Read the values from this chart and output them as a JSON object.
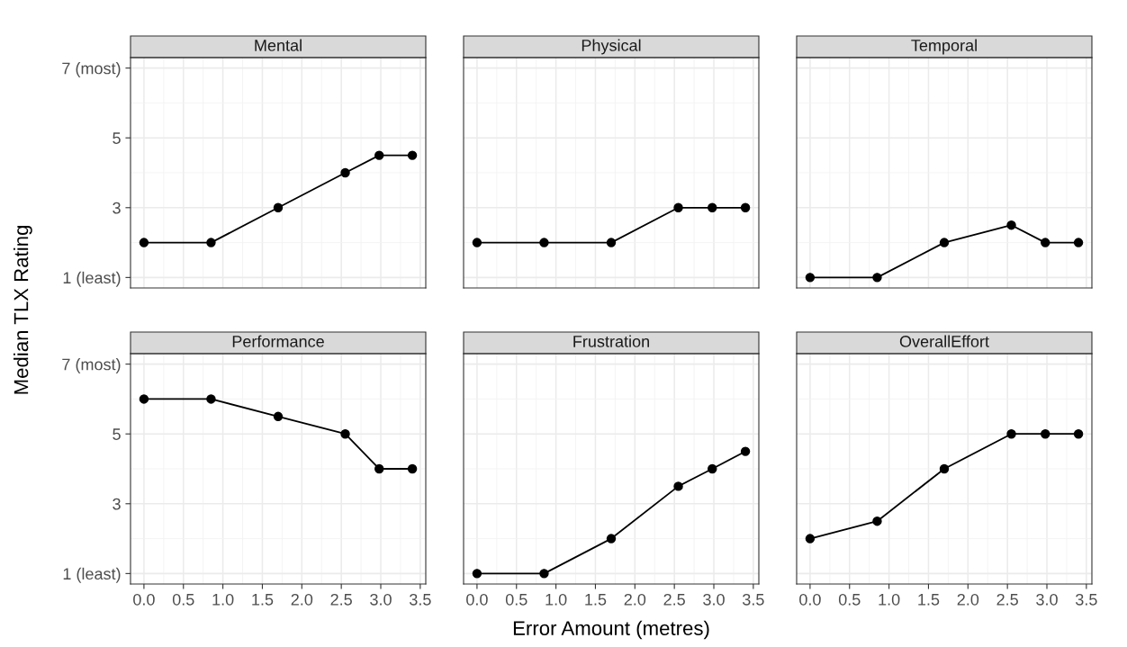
{
  "chart_data": [
    {
      "type": "line",
      "title": "Mental",
      "ylabel": "Median TLX Rating",
      "xlabel": "Error Amount (metres)",
      "x": [
        0,
        0.85,
        1.7,
        2.55,
        2.98,
        3.4
      ],
      "series": [
        {
          "color": "#000000",
          "values": [
            2,
            2,
            3,
            4,
            4.5,
            4.5
          ]
        }
      ],
      "xlim": [
        -0.17,
        3.57
      ],
      "ylim": [
        0.7,
        7.3
      ],
      "xticks": [
        {
          "value": 0,
          "label": null
        },
        {
          "value": 0.5,
          "label": null
        },
        {
          "value": 1,
          "label": null
        },
        {
          "value": 1.5,
          "label": null
        },
        {
          "value": 2,
          "label": null
        },
        {
          "value": 2.5,
          "label": null
        },
        {
          "value": 3,
          "label": null
        },
        {
          "value": 3.5,
          "label": null
        }
      ],
      "yticks": [
        {
          "value": 1,
          "label": "1 (least)"
        },
        3,
        5,
        {
          "value": 7,
          "label": "7 (most)"
        }
      ],
      "grid": true,
      "marker": "circle",
      "line_style": "solid",
      "tick_labels": "y"
    },
    {
      "type": "line",
      "title": "Physical",
      "x": [
        0,
        0.85,
        1.7,
        2.55,
        2.98,
        3.4
      ],
      "series": [
        {
          "color": "#000000",
          "values": [
            2,
            2,
            2,
            3,
            3,
            3
          ]
        }
      ],
      "xlim": [
        -0.17,
        3.57
      ],
      "ylim": [
        0.7,
        7.3
      ],
      "xticks": [
        {
          "value": 0,
          "label": null
        },
        {
          "value": 0.5,
          "label": null
        },
        {
          "value": 1,
          "label": null
        },
        {
          "value": 1.5,
          "label": null
        },
        {
          "value": 2,
          "label": null
        },
        {
          "value": 2.5,
          "label": null
        },
        {
          "value": 3,
          "label": null
        },
        {
          "value": 3.5,
          "label": null
        }
      ],
      "yticks": [
        {
          "value": 1,
          "label": null
        },
        {
          "value": 3,
          "label": null
        },
        {
          "value": 5,
          "label": null
        },
        {
          "value": 7,
          "label": null
        }
      ],
      "grid": true,
      "marker": "circle",
      "line_style": "solid",
      "tick_labels": false
    },
    {
      "type": "line",
      "title": "Temporal",
      "x": [
        0,
        0.85,
        1.7,
        2.55,
        2.98,
        3.4
      ],
      "series": [
        {
          "color": "#000000",
          "values": [
            1,
            1,
            2,
            2.5,
            2,
            2
          ]
        }
      ],
      "xlim": [
        -0.17,
        3.57
      ],
      "ylim": [
        0.7,
        7.3
      ],
      "xticks": [
        {
          "value": 0,
          "label": null
        },
        {
          "value": 0.5,
          "label": null
        },
        {
          "value": 1,
          "label": null
        },
        {
          "value": 1.5,
          "label": null
        },
        {
          "value": 2,
          "label": null
        },
        {
          "value": 2.5,
          "label": null
        },
        {
          "value": 3,
          "label": null
        },
        {
          "value": 3.5,
          "label": null
        }
      ],
      "yticks": [
        {
          "value": 1,
          "label": null
        },
        {
          "value": 3,
          "label": null
        },
        {
          "value": 5,
          "label": null
        },
        {
          "value": 7,
          "label": null
        }
      ],
      "grid": true,
      "marker": "circle",
      "line_style": "solid",
      "tick_labels": false
    },
    {
      "type": "line",
      "title": "Performance",
      "x": [
        0,
        0.85,
        1.7,
        2.55,
        2.98,
        3.4
      ],
      "series": [
        {
          "color": "#000000",
          "values": [
            6,
            6,
            5.5,
            5,
            4,
            4
          ]
        }
      ],
      "xlim": [
        -0.17,
        3.57
      ],
      "ylim": [
        0.7,
        7.3
      ],
      "xticks": [
        {
          "value": 0,
          "label": "0.0"
        },
        0.5,
        {
          "value": 1,
          "label": "1.0"
        },
        1.5,
        {
          "value": 2,
          "label": "2.0"
        },
        2.5,
        {
          "value": 3,
          "label": "3.0"
        },
        3.5
      ],
      "yticks": [
        {
          "value": 1,
          "label": "1 (least)"
        },
        3,
        5,
        {
          "value": 7,
          "label": "7 (most)"
        }
      ],
      "grid": true,
      "marker": "circle",
      "line_style": "solid"
    },
    {
      "type": "line",
      "title": "Frustration",
      "x": [
        0,
        0.85,
        1.7,
        2.55,
        2.98,
        3.4
      ],
      "series": [
        {
          "color": "#000000",
          "values": [
            1,
            1,
            2,
            3.5,
            4,
            4.5
          ]
        }
      ],
      "xlim": [
        -0.17,
        3.57
      ],
      "ylim": [
        0.7,
        7.3
      ],
      "xticks": [
        {
          "value": 0,
          "label": "0.0"
        },
        0.5,
        {
          "value": 1,
          "label": "1.0"
        },
        1.5,
        {
          "value": 2,
          "label": "2.0"
        },
        2.5,
        {
          "value": 3,
          "label": "3.0"
        },
        3.5
      ],
      "yticks": [
        {
          "value": 1,
          "label": null
        },
        {
          "value": 3,
          "label": null
        },
        {
          "value": 5,
          "label": null
        },
        {
          "value": 7,
          "label": null
        }
      ],
      "grid": true,
      "marker": "circle",
      "line_style": "solid",
      "tick_labels": "x"
    },
    {
      "type": "line",
      "title": "OverallEffort",
      "x": [
        0,
        0.85,
        1.7,
        2.55,
        2.98,
        3.4
      ],
      "series": [
        {
          "color": "#000000",
          "values": [
            2,
            2.5,
            4,
            5,
            5,
            5
          ]
        }
      ],
      "xlim": [
        -0.17,
        3.57
      ],
      "ylim": [
        0.7,
        7.3
      ],
      "xticks": [
        {
          "value": 0,
          "label": "0.0"
        },
        0.5,
        {
          "value": 1,
          "label": "1.0"
        },
        1.5,
        {
          "value": 2,
          "label": "2.0"
        },
        2.5,
        {
          "value": 3,
          "label": "3.0"
        },
        3.5
      ],
      "yticks": [
        {
          "value": 1,
          "label": null
        },
        {
          "value": 3,
          "label": null
        },
        {
          "value": 5,
          "label": null
        },
        {
          "value": 7,
          "label": null
        }
      ],
      "grid": true,
      "marker": "circle",
      "line_style": "solid",
      "tick_labels": "x"
    }
  ]
}
